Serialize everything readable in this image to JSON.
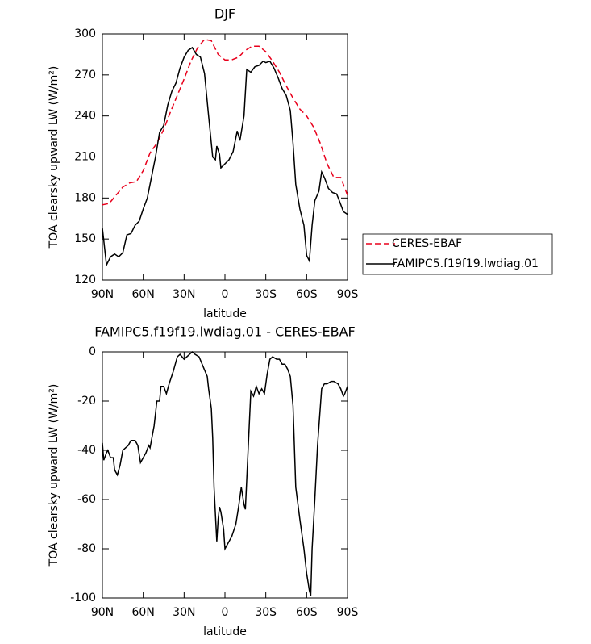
{
  "chart_data": [
    {
      "type": "line",
      "title": "DJF",
      "x_label": "latitude",
      "y_label": "TOA clearsky upward LW (W/m²)",
      "xlim": [
        90,
        -90
      ],
      "xticks": [
        {
          "value": 90,
          "label": "90N"
        },
        {
          "value": 60,
          "label": "60N"
        },
        {
          "value": 30,
          "label": "30N"
        },
        0,
        {
          "value": -30,
          "label": "30S"
        },
        {
          "value": -60,
          "label": "60S"
        },
        {
          "value": -90,
          "label": "90S"
        }
      ],
      "ylim": [
        120,
        300
      ],
      "yticks": [
        120,
        150,
        180,
        210,
        240,
        270,
        300
      ],
      "legend": "outside-right",
      "series": [
        {
          "name": "CERES-EBAF",
          "color": "#e8001c",
          "line_style": "dashed",
          "x": [
            90,
            85,
            80,
            75,
            70,
            65,
            60,
            55,
            50,
            45,
            40,
            35,
            30,
            25,
            20,
            15,
            10,
            5,
            0,
            -5,
            -10,
            -15,
            -20,
            -25,
            -30,
            -35,
            -40,
            -45,
            -50,
            -55,
            -60,
            -65,
            -70,
            -75,
            -80,
            -85,
            -90
          ],
          "values": [
            175,
            176,
            182,
            188,
            191,
            192,
            200,
            213,
            220,
            230,
            243,
            255,
            267,
            280,
            290,
            296,
            295,
            285,
            281,
            281,
            283,
            288,
            291,
            291,
            287,
            280,
            272,
            262,
            253,
            245,
            240,
            232,
            220,
            205,
            195,
            195,
            182
          ]
        },
        {
          "name": "FAMIPC5.f19f19.lwdiag.01",
          "color": "#000000",
          "line_style": "solid",
          "x": [
            90,
            87,
            84,
            81,
            78,
            75,
            72,
            69,
            66,
            63,
            60,
            57,
            54,
            51,
            48,
            45,
            42,
            39,
            36,
            33,
            30,
            27,
            24,
            21,
            18,
            15,
            12,
            9,
            7,
            6,
            4,
            3,
            0,
            -3,
            -6,
            -9,
            -11,
            -14,
            -16,
            -19,
            -22,
            -25,
            -28,
            -30,
            -33,
            -36,
            -39,
            -42,
            -45,
            -48,
            -50,
            -52,
            -55,
            -58,
            -60,
            -62,
            -64,
            -66,
            -69,
            -71,
            -73,
            -76,
            -79,
            -82,
            -84,
            -87,
            -90
          ],
          "values": [
            158,
            131,
            137,
            139,
            137,
            140,
            153,
            154,
            160,
            163,
            172,
            180,
            195,
            210,
            228,
            233,
            248,
            258,
            264,
            275,
            283,
            288,
            290,
            285,
            283,
            271,
            240,
            210,
            208,
            218,
            212,
            202,
            205,
            208,
            214,
            229,
            222,
            240,
            274,
            272,
            276,
            277,
            280,
            279,
            280,
            275,
            268,
            260,
            255,
            244,
            220,
            190,
            172,
            160,
            138,
            134,
            160,
            178,
            185,
            199,
            195,
            187,
            184,
            183,
            178,
            170,
            168
          ]
        }
      ]
    },
    {
      "type": "line",
      "title": "FAMIPC5.f19f19.lwdiag.01 - CERES-EBAF",
      "x_label": "latitude",
      "y_label": "TOA clearsky upward LW (W/m²)",
      "xlim": [
        90,
        -90
      ],
      "xticks": [
        {
          "value": 90,
          "label": "90N"
        },
        {
          "value": 60,
          "label": "60N"
        },
        {
          "value": 30,
          "label": "30N"
        },
        0,
        {
          "value": -30,
          "label": "30S"
        },
        {
          "value": -60,
          "label": "60S"
        },
        {
          "value": -90,
          "label": "90S"
        }
      ],
      "ylim": [
        -100,
        0
      ],
      "yticks": [
        -100,
        -80,
        -60,
        -40,
        -20,
        0
      ],
      "series": [
        {
          "color": "#000000",
          "line_style": "solid",
          "x": [
            90,
            89,
            87,
            86,
            84,
            82,
            81,
            79,
            77,
            75,
            73,
            71,
            69,
            66,
            64,
            62,
            60,
            58,
            56,
            55,
            52,
            50,
            48,
            47,
            45,
            43,
            41,
            38,
            35,
            33,
            30,
            26,
            24,
            22,
            19,
            16,
            13,
            12,
            10,
            9,
            8,
            6,
            5,
            4,
            3,
            1,
            0,
            -2,
            -5,
            -8,
            -10,
            -12,
            -14,
            -15,
            -17,
            -19,
            -21,
            -23,
            -25,
            -27,
            -29,
            -31,
            -33,
            -35,
            -38,
            -40,
            -42,
            -44,
            -46,
            -48,
            -50,
            -52,
            -55,
            -58,
            -60,
            -62,
            -63,
            -64,
            -66,
            -68,
            -71,
            -73,
            -75,
            -78,
            -80,
            -83,
            -85,
            -87,
            -88,
            -90
          ],
          "values": [
            -37,
            -44,
            -41,
            -40,
            -43,
            -43,
            -48,
            -50,
            -46,
            -40,
            -39,
            -38,
            -36,
            -36,
            -38,
            -45,
            -43,
            -41,
            -38,
            -39,
            -30,
            -20,
            -20,
            -14,
            -14,
            -17,
            -13,
            -8,
            -2,
            -1,
            -3,
            -1,
            0,
            -1,
            -2,
            -6,
            -10,
            -15,
            -23,
            -35,
            -55,
            -77,
            -68,
            -63,
            -65,
            -72,
            -80,
            -78,
            -75,
            -70,
            -63,
            -55,
            -62,
            -64,
            -40,
            -16,
            -18,
            -14,
            -17,
            -15,
            -17,
            -9,
            -3,
            -2,
            -3,
            -3,
            -5,
            -5,
            -7,
            -10,
            -22,
            -55,
            -68,
            -80,
            -90,
            -97,
            -99,
            -80,
            -60,
            -38,
            -15,
            -13,
            -13,
            -12,
            -12,
            -13,
            -15,
            -18,
            -17,
            -14
          ]
        }
      ]
    }
  ]
}
